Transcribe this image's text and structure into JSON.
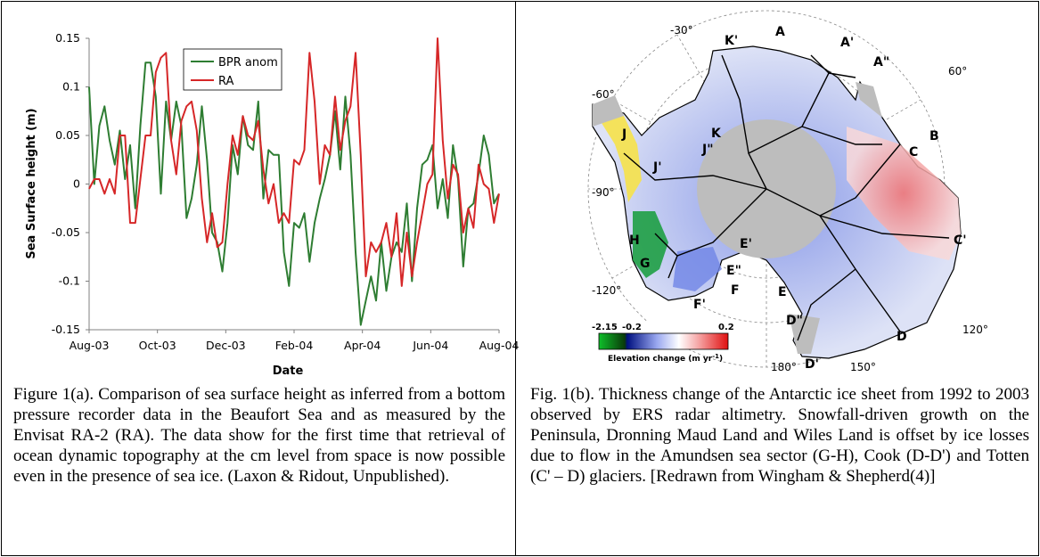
{
  "left_panel": {
    "caption": "Figure 1(a). Comparison of sea surface height as inferred from a bottom pressure recorder data in the Beaufort Sea and as measured by the Envisat RA-2 (RA). The data show for the first time that retrieval of ocean dynamic topography at the cm level from space is now possible even in the presence of sea ice. (Laxon & Ridout, Unpublished)."
  },
  "right_panel": {
    "caption": "Fig. 1(b). Thickness change of the Antarctic ice sheet from 1992 to 2003 observed by ERS radar altimetry. Snowfall-driven growth on the Peninsula, Dronning Maud Land and Wiles Land is offset by ice losses due to flow in the Amundsen sea sector (G-H), Cook (D-D') and Totten (C' – D) glaciers. [Redrawn from Wingham & Shepherd(4)]",
    "map": {
      "longitude_labels": [
        "-30°",
        "60°",
        "-60°",
        "-90°",
        "-120°",
        "120°",
        "180°",
        "150°"
      ],
      "basin_labels": [
        "K'",
        "A",
        "A'",
        "A\"",
        "K",
        "B",
        "J",
        "J\"",
        "C",
        "J'",
        "E'",
        "C'",
        "H",
        "E\"",
        "G",
        "F",
        "E",
        "F'",
        "D\"",
        "D",
        "D'"
      ],
      "colorbar_ticks": [
        "-2.15",
        "-0.2",
        "0.2"
      ],
      "colorbar_label": "Elevation change (m yr",
      "colorbar_label_sup": "-1",
      "colorbar_label_end": ")",
      "colors": {
        "gain": "#e8202a",
        "loss": "#1a33d6",
        "strong_loss": "#0a8a2a",
        "mask": "#bdbdbd"
      }
    }
  },
  "chart_data": {
    "type": "line",
    "xlabel": "Date",
    "ylabel": "Sea Surface height (m)",
    "x_tick_labels": [
      "Aug-03",
      "Oct-03",
      "Dec-03",
      "Feb-04",
      "Apr-04",
      "Jun-04",
      "Aug-04"
    ],
    "x_range": [
      "2003-08-01",
      "2004-08-01"
    ],
    "y_tick_labels": [
      "0.15",
      "0.1",
      "0.05",
      "0",
      "-0.05",
      "-0.1",
      "-0.15"
    ],
    "ylim": [
      -0.15,
      0.15
    ],
    "legend": "top-center",
    "series": [
      {
        "name": "BPR anom",
        "color": "#2e7d32",
        "x_offsets_unused": null,
        "values": [
          0.1,
          0.0,
          0.06,
          0.08,
          0.045,
          0.02,
          0.055,
          0.005,
          0.04,
          -0.025,
          0.06,
          0.125,
          0.125,
          0.09,
          -0.01,
          0.085,
          0.045,
          0.085,
          0.06,
          -0.035,
          -0.015,
          0.02,
          0.08,
          0.025,
          -0.05,
          -0.06,
          -0.09,
          -0.04,
          0.04,
          0.01,
          0.07,
          0.04,
          0.035,
          0.085,
          -0.015,
          0.035,
          0.03,
          0.03,
          -0.07,
          -0.105,
          -0.04,
          -0.045,
          -0.03,
          -0.08,
          -0.04,
          -0.015,
          0.005,
          0.03,
          0.075,
          0.015,
          0.09,
          0.03,
          -0.07,
          -0.145,
          -0.12,
          -0.095,
          -0.12,
          -0.06,
          -0.11,
          -0.075,
          -0.06,
          -0.07,
          -0.02,
          -0.1,
          -0.025,
          0.02,
          0.025,
          0.04,
          -0.025,
          0.005,
          -0.035,
          0.04,
          0.005,
          -0.085,
          -0.025,
          -0.02,
          0.01,
          0.05,
          0.03,
          -0.02,
          -0.01
        ]
      },
      {
        "name": "RA",
        "color": "#d62728",
        "values": [
          -0.005,
          0.005,
          0.005,
          -0.01,
          0.005,
          -0.01,
          0.05,
          0.05,
          -0.04,
          -0.04,
          0.005,
          0.05,
          0.05,
          0.115,
          0.13,
          0.135,
          0.045,
          0.01,
          0.065,
          0.08,
          0.085,
          0.055,
          -0.015,
          -0.06,
          -0.03,
          -0.065,
          -0.06,
          0.0,
          0.05,
          0.03,
          0.07,
          0.05,
          0.045,
          0.065,
          0.015,
          -0.02,
          0.0,
          -0.04,
          -0.03,
          -0.04,
          0.025,
          0.02,
          0.035,
          0.135,
          0.085,
          0.0,
          0.04,
          0.03,
          0.09,
          0.035,
          0.065,
          0.08,
          0.135,
          0.03,
          -0.095,
          -0.06,
          -0.07,
          -0.06,
          -0.04,
          -0.075,
          -0.03,
          -0.105,
          -0.05,
          -0.095,
          -0.06,
          -0.03,
          0.0,
          0.01,
          0.15,
          0.045,
          -0.015,
          0.02,
          0.01,
          -0.05,
          -0.025,
          -0.045,
          0.02,
          0.0,
          -0.005,
          -0.04,
          -0.01
        ]
      }
    ]
  }
}
